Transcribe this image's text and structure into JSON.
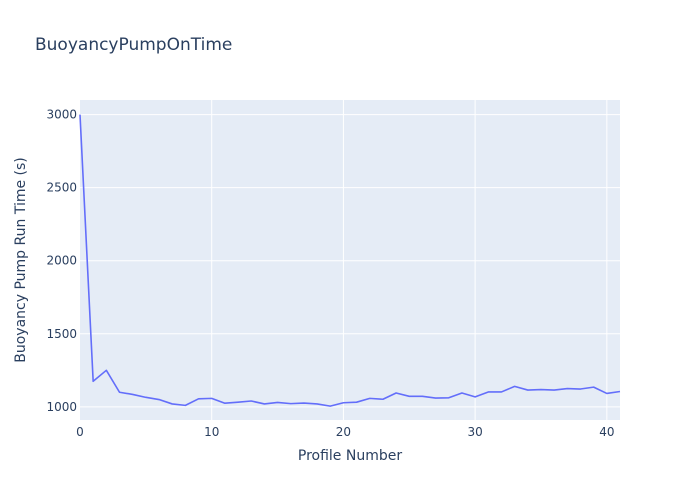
{
  "chart_data": {
    "type": "line",
    "title": "BuoyancyPumpOnTime",
    "xlabel": "Profile Number",
    "ylabel": "Buoyancy Pump Run Time (s)",
    "xlim": [
      0,
      41
    ],
    "ylim": [
      910,
      3100
    ],
    "x_ticks": [
      0,
      10,
      20,
      30,
      40
    ],
    "y_ticks": [
      1000,
      1500,
      2000,
      2500,
      3000
    ],
    "series": [
      {
        "name": "BuoyancyPumpOnTime",
        "color": "#636efa",
        "x": [
          0,
          1,
          2,
          3,
          4,
          5,
          6,
          7,
          8,
          9,
          10,
          11,
          12,
          13,
          14,
          15,
          16,
          17,
          18,
          19,
          20,
          21,
          22,
          23,
          24,
          25,
          26,
          27,
          28,
          29,
          30,
          31,
          32,
          33,
          34,
          35,
          36,
          37,
          38,
          39,
          40,
          41
        ],
        "values": [
          3000,
          1175,
          1250,
          1100,
          1085,
          1065,
          1050,
          1020,
          1010,
          1055,
          1058,
          1025,
          1032,
          1040,
          1020,
          1030,
          1022,
          1026,
          1020,
          1005,
          1028,
          1032,
          1058,
          1052,
          1095,
          1072,
          1072,
          1060,
          1062,
          1095,
          1068,
          1102,
          1102,
          1140,
          1115,
          1118,
          1115,
          1125,
          1122,
          1135,
          1092,
          1105
        ]
      }
    ]
  }
}
